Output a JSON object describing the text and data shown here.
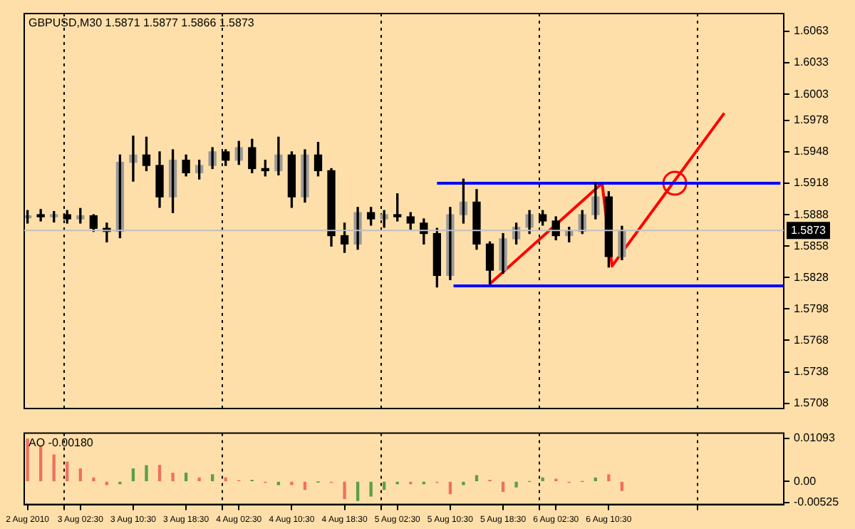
{
  "chart_data": [
    {
      "type": "candlestick",
      "title": "GBPUSD,M30 1.5871 1.5877 1.5866 1.5873",
      "color": "#000000",
      "colors": [
        "#9a9a9a",
        "#000000",
        "#9a9a9a",
        "#000000",
        "#9a9a9a",
        "#000000",
        "#000000",
        "#9a9a9a",
        "#9a9a9a",
        "#000000",
        "#000000",
        "#9a9a9a",
        "#000000",
        "#9a9a9a",
        "#9a9a9a",
        "#000000",
        "#9a9a9a",
        "#000000",
        "#000000",
        "#9a9a9a",
        "#000000",
        "#9a9a9a",
        "#000000",
        "#000000",
        "#000000",
        "#9a9a9a",
        "#000000",
        "#9a9a9a",
        "#000000",
        "#000000",
        "#000000",
        "#000000",
        "#9a9a9a",
        "#9a9a9a",
        "#000000",
        "#000000",
        "#9a9a9a",
        "#9a9a9a",
        "#9a9a9a",
        "#000000",
        "#000000",
        "#9a9a9a",
        "#9a9a9a",
        "#9a9a9a",
        "#000000",
        "#9a9a9a"
      ],
      "x": [
        "2010-08-02T18:30",
        "2010-08-02T20:30",
        "2010-08-02T22:30",
        "2010-08-03T00:30",
        "2010-08-03T02:30",
        "2010-08-03T04:30",
        "2010-08-03T06:30",
        "2010-08-03T08:30",
        "2010-08-03T10:30",
        "2010-08-03T12:30",
        "2010-08-03T14:30",
        "2010-08-03T16:30",
        "2010-08-03T18:30",
        "2010-08-03T20:30",
        "2010-08-03T22:30",
        "2010-08-04T00:30",
        "2010-08-04T02:30",
        "2010-08-04T04:30",
        "2010-08-04T06:30",
        "2010-08-04T08:30",
        "2010-08-04T10:30",
        "2010-08-04T12:30",
        "2010-08-04T14:30",
        "2010-08-04T16:30",
        "2010-08-04T18:30",
        "2010-08-04T20:30",
        "2010-08-04T22:30",
        "2010-08-05T00:30",
        "2010-08-05T02:30",
        "2010-08-05T04:30",
        "2010-08-05T06:30",
        "2010-08-05T08:30",
        "2010-08-05T10:30",
        "2010-08-05T12:30",
        "2010-08-05T14:30",
        "2010-08-05T16:30",
        "2010-08-05T18:30",
        "2010-08-05T20:30",
        "2010-08-05T22:30",
        "2010-08-06T00:30",
        "2010-08-06T02:30",
        "2010-08-06T04:30",
        "2010-08-06T06:30",
        "2010-08-06T08:30",
        "2010-08-06T10:30",
        "2010-08-06T12:30"
      ],
      "ohlc": [
        [
          1.5885,
          1.5892,
          1.588,
          1.5887
        ],
        [
          1.5887,
          1.5893,
          1.5882,
          1.5886
        ],
        [
          1.5886,
          1.5891,
          1.5881,
          1.5888
        ],
        [
          1.5888,
          1.5892,
          1.588,
          1.5884
        ],
        [
          1.5884,
          1.5894,
          1.588,
          1.5887
        ],
        [
          1.5887,
          1.5888,
          1.5872,
          1.5875
        ],
        [
          1.5875,
          1.588,
          1.5862,
          1.5872
        ],
        [
          1.5872,
          1.5945,
          1.5866,
          1.5938
        ],
        [
          1.5938,
          1.5963,
          1.592,
          1.5945
        ],
        [
          1.5945,
          1.5962,
          1.593,
          1.5935
        ],
        [
          1.5935,
          1.5948,
          1.5895,
          1.5905
        ],
        [
          1.5905,
          1.595,
          1.589,
          1.594
        ],
        [
          1.594,
          1.5945,
          1.5925,
          1.5928
        ],
        [
          1.5928,
          1.594,
          1.5922,
          1.5935
        ],
        [
          1.5935,
          1.5952,
          1.5932,
          1.5948
        ],
        [
          1.5948,
          1.595,
          1.5935,
          1.594
        ],
        [
          1.594,
          1.5958,
          1.5936,
          1.5952
        ],
        [
          1.5952,
          1.596,
          1.5928,
          1.5932
        ],
        [
          1.5932,
          1.594,
          1.5925,
          1.593
        ],
        [
          1.593,
          1.5962,
          1.5926,
          1.5945
        ],
        [
          1.5945,
          1.5948,
          1.5895,
          1.5905
        ],
        [
          1.5905,
          1.595,
          1.59,
          1.5945
        ],
        [
          1.5945,
          1.5957,
          1.5925,
          1.593
        ],
        [
          1.593,
          1.5932,
          1.5858,
          1.5868
        ],
        [
          1.5868,
          1.588,
          1.5852,
          1.586
        ],
        [
          1.586,
          1.5895,
          1.5855,
          1.589
        ],
        [
          1.589,
          1.5895,
          1.5878,
          1.5884
        ],
        [
          1.5884,
          1.5892,
          1.5876,
          1.5888
        ],
        [
          1.5888,
          1.5908,
          1.5882,
          1.5886
        ],
        [
          1.5886,
          1.589,
          1.5874,
          1.588
        ],
        [
          1.588,
          1.5884,
          1.586,
          1.587
        ],
        [
          1.587,
          1.5875,
          1.5819,
          1.583
        ],
        [
          1.583,
          1.5895,
          1.5826,
          1.5888
        ],
        [
          1.5888,
          1.5922,
          1.588,
          1.59
        ],
        [
          1.59,
          1.5912,
          1.5855,
          1.586
        ],
        [
          1.586,
          1.5862,
          1.5822,
          1.5835
        ],
        [
          1.5835,
          1.587,
          1.5832,
          1.5865
        ],
        [
          1.5865,
          1.588,
          1.586,
          1.5876
        ],
        [
          1.5876,
          1.5892,
          1.587,
          1.5888
        ],
        [
          1.5888,
          1.5892,
          1.5878,
          1.5882
        ],
        [
          1.5882,
          1.5886,
          1.5864,
          1.5868
        ],
        [
          1.5868,
          1.5876,
          1.5862,
          1.5872
        ],
        [
          1.5872,
          1.5892,
          1.587,
          1.5888
        ],
        [
          1.5888,
          1.5918,
          1.5884,
          1.5905
        ],
        [
          1.5905,
          1.591,
          1.5838,
          1.5848
        ],
        [
          1.5848,
          1.5877,
          1.5845,
          1.5873
        ]
      ],
      "series": [
        {
          "type": "line",
          "color": "#0000ff",
          "x": [
            "2010-08-05T08:30",
            "2010-08-07T12:30"
          ],
          "values": [
            1.5918,
            1.5918
          ]
        },
        {
          "type": "line",
          "color": "#0000ff",
          "x": [
            "2010-08-05T11:00",
            "2010-08-07T13:00"
          ],
          "values": [
            1.582,
            1.582
          ]
        },
        {
          "type": "line",
          "color": "#ff0000",
          "x": [
            "2010-08-05T16:30",
            "2010-08-06T09:30",
            "2010-08-06T11:00",
            "2010-08-07T04:00"
          ],
          "values": [
            1.5822,
            1.5918,
            1.5839,
            1.5985
          ]
        },
        {
          "type": "scatter",
          "color": "#ff0000",
          "marker": "circle",
          "x": [
            "2010-08-06T20:30"
          ],
          "values": [
            1.5918
          ]
        }
      ],
      "ref_lines": [
        {
          "axis": "y",
          "value": 1.5873,
          "label": "1.5873",
          "color": "#c0c0c0"
        }
      ],
      "xlim": [
        "2010-08-02T18:00",
        "2010-08-07T13:00"
      ],
      "xticks": [
        {
          "value": "2010-08-03T00:00",
          "label": null
        },
        {
          "value": "2010-08-04T00:00",
          "label": null
        },
        {
          "value": "2010-08-05T00:00",
          "label": null
        },
        {
          "value": "2010-08-06T00:00",
          "label": null
        },
        {
          "value": "2010-08-07T00:00",
          "label": null
        }
      ],
      "ylim": [
        1.5703,
        1.608
      ],
      "yticks": [
        1.5708,
        1.5738,
        1.5768,
        1.5798,
        1.5828,
        1.5858,
        1.5888,
        1.5918,
        1.5948,
        1.5978,
        1.6003,
        1.6033,
        1.6063
      ],
      "grid": "x",
      "tick_labels": "y",
      "legend": false
    },
    {
      "type": "bar",
      "title": "AO -0.00180",
      "x": [
        "2010-08-02T18:30",
        "2010-08-02T20:30",
        "2010-08-02T22:30",
        "2010-08-03T00:30",
        "2010-08-03T02:30",
        "2010-08-03T04:30",
        "2010-08-03T06:30",
        "2010-08-03T08:30",
        "2010-08-03T10:30",
        "2010-08-03T12:30",
        "2010-08-03T14:30",
        "2010-08-03T16:30",
        "2010-08-03T18:30",
        "2010-08-03T20:30",
        "2010-08-03T22:30",
        "2010-08-04T00:30",
        "2010-08-04T02:30",
        "2010-08-04T04:30",
        "2010-08-04T06:30",
        "2010-08-04T08:30",
        "2010-08-04T10:30",
        "2010-08-04T12:30",
        "2010-08-04T14:30",
        "2010-08-04T16:30",
        "2010-08-04T18:30",
        "2010-08-04T20:30",
        "2010-08-04T22:30",
        "2010-08-05T00:30",
        "2010-08-05T02:30",
        "2010-08-05T04:30",
        "2010-08-05T06:30",
        "2010-08-05T08:30",
        "2010-08-05T10:30",
        "2010-08-05T12:30",
        "2010-08-05T14:30",
        "2010-08-05T16:30",
        "2010-08-05T18:30",
        "2010-08-05T20:30",
        "2010-08-05T22:30",
        "2010-08-06T00:30",
        "2010-08-06T02:30",
        "2010-08-06T04:30",
        "2010-08-06T06:30",
        "2010-08-06T08:30",
        "2010-08-06T10:30",
        "2010-08-06T12:30"
      ],
      "values": [
        0.0107,
        0.009,
        0.0067,
        0.0049,
        0.0032,
        0.0009,
        -0.0008,
        -0.0006,
        0.0032,
        0.004,
        0.0041,
        0.0021,
        0.0021,
        0.0009,
        0.0017,
        0.0009,
        0.0002,
        0.0003,
        -0.0002,
        -0.0008,
        -0.0008,
        -0.002,
        -0.0001,
        -0.0002,
        -0.0043,
        -0.0048,
        -0.0037,
        -0.002,
        -0.0006,
        -0.0006,
        -0.0006,
        -0.0002,
        -0.0031,
        -0.0008,
        0.0015,
        0.0003,
        -0.0025,
        -0.0014,
        0.0,
        0.0009,
        0.0006,
        -0.0002,
        0.0,
        0.0009,
        0.0017,
        -0.0023
      ],
      "colors": [
        "#f07060",
        "#f07060",
        "#f07060",
        "#f07060",
        "#f07060",
        "#f07060",
        "#f07060",
        "#58a048",
        "#58a048",
        "#58a048",
        "#f07060",
        "#f07060",
        "#58a048",
        "#f07060",
        "#58a048",
        "#f07060",
        "#f07060",
        "#58a048",
        "#f07060",
        "#58a048",
        "#f07060",
        "#f07060",
        "#58a048",
        "#f07060",
        "#f07060",
        "#58a048",
        "#58a048",
        "#58a048",
        "#58a048",
        "#f07060",
        "#58a048",
        "#f07060",
        "#f07060",
        "#58a048",
        "#58a048",
        "#f07060",
        "#f07060",
        "#58a048",
        "#58a048",
        "#58a048",
        "#f07060",
        "#f07060",
        "#58a048",
        "#58a048",
        "#f07060",
        "#f07060"
      ],
      "xlim": [
        "2010-08-02T18:00",
        "2010-08-07T13:00"
      ],
      "xticks": [
        {
          "value": "2010-08-02T18:30",
          "label": "2 Aug 2010"
        },
        {
          "value": "2010-08-03T00:00",
          "label": null
        },
        {
          "value": "2010-08-03T02:30",
          "label": "3 Aug 02:30"
        },
        {
          "value": "2010-08-03T10:30",
          "label": "3 Aug 10:30"
        },
        {
          "value": "2010-08-03T18:30",
          "label": "3 Aug 18:30"
        },
        {
          "value": "2010-08-04T00:00",
          "label": null
        },
        {
          "value": "2010-08-04T02:30",
          "label": "4 Aug 02:30"
        },
        {
          "value": "2010-08-04T10:30",
          "label": "4 Aug 10:30"
        },
        {
          "value": "2010-08-04T18:30",
          "label": "4 Aug 18:30"
        },
        {
          "value": "2010-08-05T00:00",
          "label": null
        },
        {
          "value": "2010-08-05T02:30",
          "label": "5 Aug 02:30"
        },
        {
          "value": "2010-08-05T10:30",
          "label": "5 Aug 10:30"
        },
        {
          "value": "2010-08-05T18:30",
          "label": "5 Aug 18:30"
        },
        {
          "value": "2010-08-06T00:00",
          "label": null
        },
        {
          "value": "2010-08-06T02:30",
          "label": "6 Aug 02:30"
        },
        {
          "value": "2010-08-06T10:30",
          "label": "6 Aug 10:30"
        },
        {
          "value": "2010-08-07T00:00",
          "label": null
        }
      ],
      "ylim": [
        -0.0058,
        0.0122
      ],
      "yticks": [
        {
          "value": -0.00525,
          "label": "-0.00525"
        },
        {
          "value": 0,
          "label": "0.00"
        },
        {
          "value": 0.01093,
          "label": "0.01093"
        }
      ],
      "grid": "x",
      "legend": false
    }
  ]
}
